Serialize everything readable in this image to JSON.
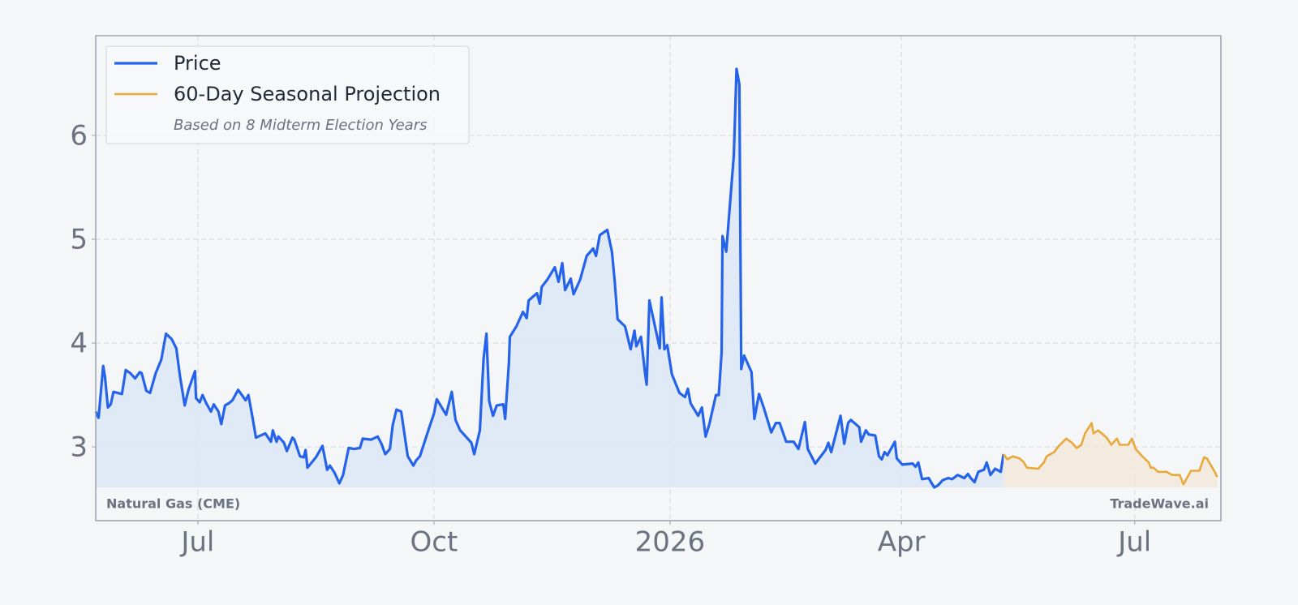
{
  "chart_data": {
    "type": "line",
    "series": [
      {
        "name": "Price",
        "color": "#2563eb",
        "fill": "#dbe8f6",
        "x": [
          2025.387,
          2025.39,
          2025.395,
          2025.397,
          2025.4,
          2025.403,
          2025.406,
          2025.415,
          2025.419,
          2025.424,
          2025.429,
          2025.434,
          2025.436,
          2025.441,
          2025.445,
          2025.451,
          2025.457,
          2025.462,
          2025.468,
          2025.473,
          2025.477,
          2025.482,
          2025.486,
          2025.493,
          2025.494,
          2025.498,
          2025.501,
          2025.505,
          2025.51,
          2025.513,
          2025.518,
          2025.521,
          2025.525,
          2025.529,
          2025.533,
          2025.539,
          2025.547,
          2025.55,
          2025.554,
          2025.558,
          2025.568,
          2025.574,
          2025.576,
          2025.58,
          2025.582,
          2025.588,
          2025.591,
          2025.597,
          2025.599,
          2025.605,
          2025.609,
          2025.611,
          2025.613,
          2025.622,
          2025.629,
          2025.634,
          2025.637,
          2025.642,
          2025.647,
          2025.651,
          2025.657,
          2025.663,
          2025.669,
          2025.672,
          2025.681,
          2025.688,
          2025.692,
          2025.696,
          2025.701,
          2025.704,
          2025.708,
          2025.713,
          2025.72,
          2025.726,
          2025.729,
          2025.733,
          2025.742,
          2025.748,
          2025.751,
          2025.761,
          2025.767,
          2025.771,
          2025.776,
          2025.782,
          2025.788,
          2025.791,
          2025.797,
          2025.801,
          2025.804,
          2025.807,
          2025.811,
          2025.815,
          2025.822,
          2025.824,
          2025.828,
          2025.829,
          2025.836,
          2025.843,
          2025.847,
          2025.849,
          2025.858,
          2025.861,
          2025.863,
          2025.869,
          2025.877,
          2025.881,
          2025.885,
          2025.888,
          2025.894,
          2025.897,
          2025.904,
          2025.911,
          2025.918,
          2025.921,
          2025.925,
          2025.933,
          2025.938,
          2025.941,
          2025.944,
          2025.952,
          2025.958,
          2025.962,
          2025.964,
          2025.969,
          2025.973,
          2025.975,
          2025.978,
          2025.983,
          2025.989,
          2025.991,
          2025.994,
          2025.997,
          2026.002,
          2026.01,
          2026.016,
          2026.019,
          2026.022,
          2026.03,
          2026.034,
          2026.038,
          2026.042,
          2026.049,
          2026.052,
          2026.055,
          2026.056,
          2026.06,
          2026.068,
          2026.071,
          2026.074,
          2026.076,
          2026.079,
          2026.087,
          2026.09,
          2026.095,
          2026.1,
          2026.108,
          2026.113,
          2026.117,
          2026.124,
          2026.132,
          2026.137,
          2026.144,
          2026.147,
          2026.155,
          2026.166,
          2026.169,
          2026.172,
          2026.182,
          2026.186,
          2026.19,
          2026.193,
          2026.202,
          2026.204,
          2026.209,
          2026.212,
          2026.219,
          2026.223,
          2026.226,
          2026.229,
          2026.232,
          2026.24,
          2026.242,
          2026.248,
          2026.259,
          2026.262,
          2026.265,
          2026.269,
          2026.276,
          2026.282,
          2026.286,
          2026.291,
          2026.297,
          2026.301,
          2026.307,
          2026.314,
          2026.318,
          2026.321,
          2026.325,
          2026.329,
          2026.335,
          2026.338,
          2026.342,
          2026.347,
          2026.353,
          2026.356
        ],
        "values": [
          3.34,
          3.28,
          3.78,
          3.67,
          3.38,
          3.41,
          3.53,
          3.51,
          3.74,
          3.71,
          3.66,
          3.72,
          3.71,
          3.54,
          3.52,
          3.71,
          3.84,
          4.09,
          4.04,
          3.95,
          3.68,
          3.4,
          3.55,
          3.73,
          3.47,
          3.43,
          3.5,
          3.42,
          3.34,
          3.41,
          3.34,
          3.22,
          3.4,
          3.42,
          3.45,
          3.55,
          3.45,
          3.5,
          3.3,
          3.09,
          3.13,
          3.05,
          3.16,
          3.05,
          3.1,
          3.04,
          2.96,
          3.09,
          3.07,
          2.91,
          2.9,
          2.97,
          2.8,
          2.9,
          3.01,
          2.78,
          2.82,
          2.75,
          2.65,
          2.73,
          2.99,
          2.98,
          2.99,
          3.08,
          3.07,
          3.1,
          3.03,
          2.93,
          2.98,
          3.21,
          3.36,
          3.34,
          2.91,
          2.82,
          2.87,
          2.91,
          3.16,
          3.32,
          3.46,
          3.31,
          3.53,
          3.26,
          3.16,
          3.1,
          3.04,
          2.93,
          3.16,
          3.85,
          4.09,
          3.44,
          3.3,
          3.4,
          3.41,
          3.27,
          3.81,
          4.06,
          4.16,
          4.3,
          4.24,
          4.41,
          4.48,
          4.38,
          4.54,
          4.61,
          4.73,
          4.59,
          4.77,
          4.51,
          4.62,
          4.47,
          4.61,
          4.84,
          4.91,
          4.84,
          5.04,
          5.09,
          4.88,
          4.59,
          4.23,
          4.16,
          3.94,
          4.12,
          3.97,
          4.06,
          3.73,
          3.6,
          4.41,
          4.2,
          3.95,
          4.44,
          3.94,
          3.98,
          3.7,
          3.52,
          3.48,
          3.56,
          3.42,
          3.3,
          3.38,
          3.1,
          3.22,
          3.5,
          3.5,
          3.91,
          5.03,
          4.88,
          5.8,
          6.64,
          6.49,
          3.75,
          3.88,
          3.72,
          3.27,
          3.51,
          3.38,
          3.14,
          3.23,
          3.23,
          3.05,
          3.05,
          2.98,
          3.24,
          2.98,
          2.84,
          2.97,
          3.04,
          2.95,
          3.3,
          3.03,
          3.23,
          3.26,
          3.19,
          3.05,
          3.16,
          3.12,
          3.11,
          2.91,
          2.88,
          2.95,
          2.92,
          3.05,
          2.89,
          2.83,
          2.84,
          2.81,
          2.85,
          2.69,
          2.7,
          2.61,
          2.63,
          2.68,
          2.7,
          2.69,
          2.73,
          2.7,
          2.74,
          2.7,
          2.66,
          2.76,
          2.78,
          2.85,
          2.73,
          2.79,
          2.76,
          2.93
        ]
      },
      {
        "name": "60-Day Seasonal Projection",
        "color": "#e8a93a",
        "fill": "#f2e8dc",
        "x": [
          2026.356,
          2026.36,
          2026.366,
          2026.373,
          2026.377,
          2026.381,
          2026.393,
          2026.399,
          2026.402,
          2026.41,
          2026.415,
          2026.423,
          2026.429,
          2026.434,
          2026.439,
          2026.443,
          2026.45,
          2026.452,
          2026.457,
          2026.466,
          2026.471,
          2026.477,
          2026.48,
          2026.489,
          2026.493,
          2026.497,
          2026.504,
          2026.511,
          2026.513,
          2026.516,
          2026.521,
          2026.53,
          2026.536,
          2026.544,
          2026.548,
          2026.556,
          2026.565,
          2026.57,
          2026.573,
          2026.582,
          2026.584
        ],
        "values": [
          2.93,
          2.88,
          2.91,
          2.89,
          2.86,
          2.8,
          2.79,
          2.85,
          2.91,
          2.95,
          3.01,
          3.08,
          3.04,
          2.99,
          3.02,
          3.13,
          3.23,
          3.13,
          3.16,
          3.09,
          3.02,
          3.08,
          3.02,
          3.02,
          3.08,
          2.98,
          2.91,
          2.85,
          2.8,
          2.8,
          2.76,
          2.76,
          2.73,
          2.73,
          2.64,
          2.77,
          2.77,
          2.9,
          2.89,
          2.75,
          2.71
        ]
      }
    ],
    "legend_note": "Based on 8 Midterm Election Years",
    "legend": "upper left",
    "annotations": [
      "Natural Gas (CME)",
      "TradeWave.ai"
    ],
    "xlim": [
      2025.387,
      2026.588
    ],
    "xticks": [
      {
        "value": 2025.496,
        "label": "Jul"
      },
      {
        "value": 2025.748,
        "label": "Oct"
      },
      2026,
      {
        "value": 2026.247,
        "label": "Apr"
      },
      {
        "value": 2026.496,
        "label": "Jul"
      }
    ],
    "ylim": [
      2.29,
      6.96
    ],
    "yticks": [
      3,
      4,
      5,
      6
    ],
    "grid": true
  }
}
